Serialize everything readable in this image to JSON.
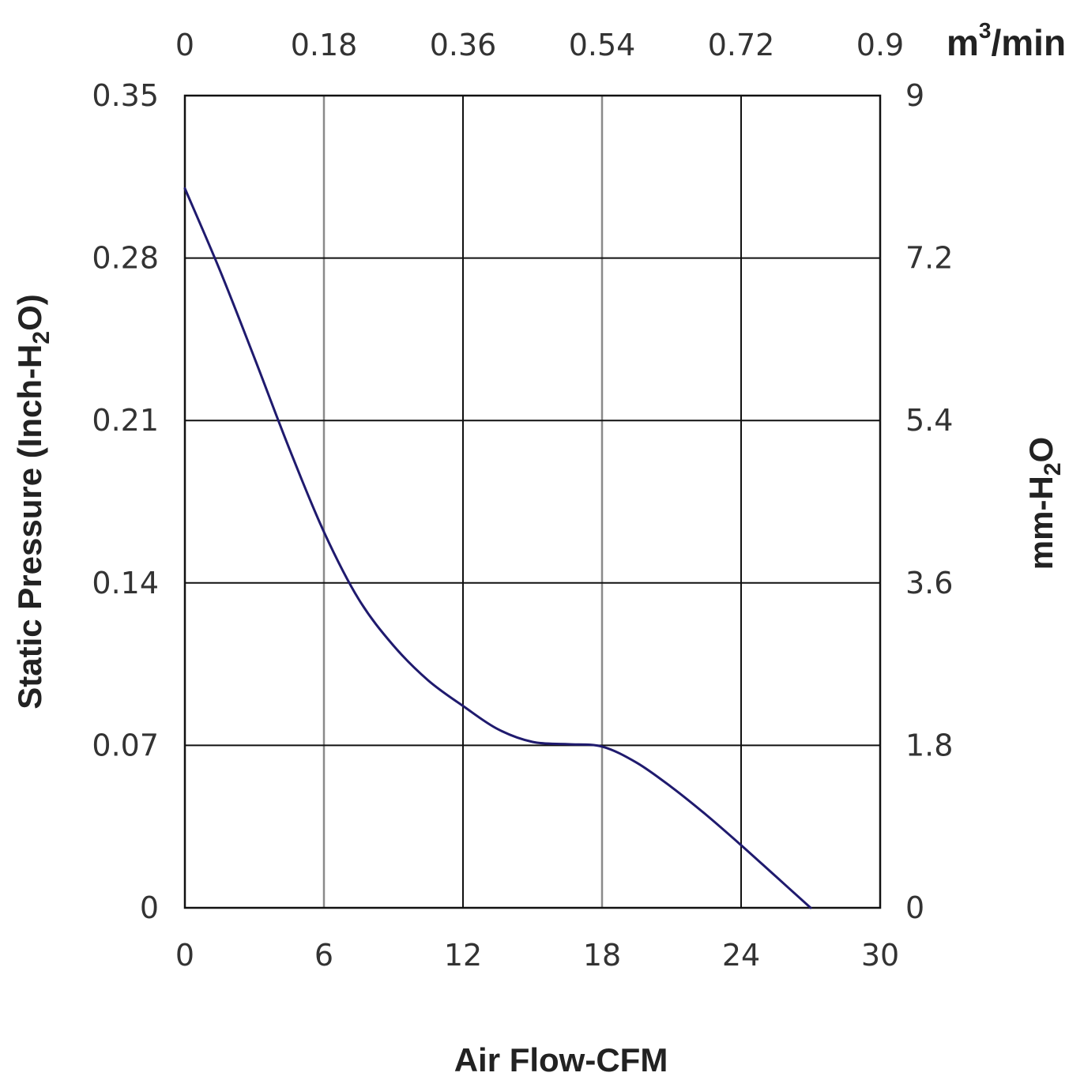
{
  "chart_data": {
    "type": "line",
    "title": "",
    "xlabel": "Air Flow-CFM",
    "ylabel": {
      "main": "Static Pressure (Inch-H",
      "sub": "2",
      "tail": "O)"
    },
    "ylabel_right": {
      "main": "mm-H",
      "sub": "2",
      "tail": "O"
    },
    "xlabel_top": {
      "main": "m",
      "sup": "3",
      "tail": "/min"
    },
    "xlim": [
      0,
      30
    ],
    "ylim": [
      0,
      0.35
    ],
    "x_ticks": [
      "0",
      "6",
      "12",
      "18",
      "24",
      "30"
    ],
    "x_ticks_top": [
      "0",
      "0.18",
      "0.36",
      "0.54",
      "0.72",
      "0.9"
    ],
    "y_ticks": [
      "0",
      "0.07",
      "0.14",
      "0.21",
      "0.28",
      "0.35"
    ],
    "y_ticks_right": [
      "0",
      "1.8",
      "3.6",
      "5.4",
      "7.2",
      "9"
    ],
    "grid": true,
    "series": [
      {
        "color": "#1f1a6e",
        "x": [
          0,
          1.5,
          3,
          4.5,
          6,
          7.5,
          9,
          10.5,
          12,
          13.5,
          15,
          16.5,
          18,
          19.5,
          21,
          22.5,
          24,
          25.5,
          27
        ],
        "y": [
          0.31,
          0.275,
          0.237,
          0.198,
          0.162,
          0.133,
          0.113,
          0.098,
          0.087,
          0.077,
          0.0715,
          0.0705,
          0.0695,
          0.0625,
          0.052,
          0.04,
          0.027,
          0.0135,
          0
        ]
      }
    ]
  }
}
